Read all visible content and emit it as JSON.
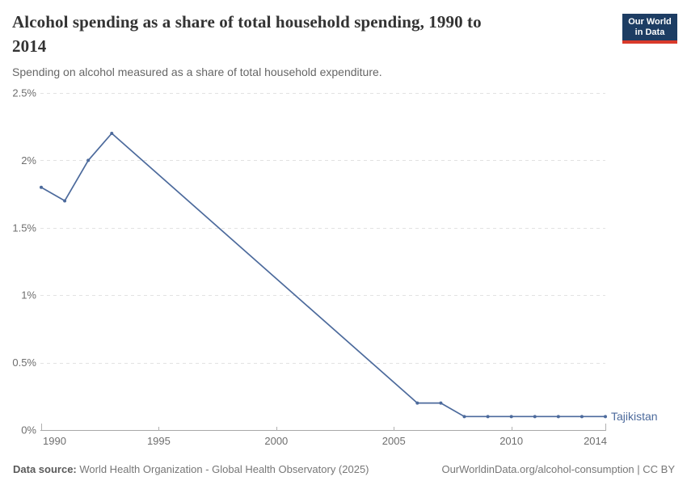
{
  "header": {
    "title_lines": [
      "Alcohol spending as a share of total household spending, 1990 to",
      "2014"
    ],
    "subtitle": "Spending on alcohol measured as a share of total household expenditure.",
    "logo": {
      "line1": "Our World",
      "line2": "in Data"
    }
  },
  "chart_data": {
    "type": "line",
    "title": "Alcohol spending as a share of total household spending, 1990 to 2014",
    "subtitle": "Spending on alcohol measured as a share of total household expenditure.",
    "xlabel": "",
    "ylabel": "",
    "xlim": [
      1990,
      2014
    ],
    "ylim": [
      0,
      2.5
    ],
    "x_ticks": [
      1990,
      1995,
      2000,
      2005,
      2010,
      2014
    ],
    "y_ticks": [
      0,
      0.5,
      1,
      1.5,
      2,
      2.5
    ],
    "y_tick_labels": [
      "0%",
      "0.5%",
      "1%",
      "1.5%",
      "2%",
      "2.5%"
    ],
    "grid": true,
    "legend_position": "end-of-line",
    "series": [
      {
        "name": "Tajikistan",
        "color": "#4c6a9c",
        "unit": "%",
        "points": [
          [
            1990,
            1.8
          ],
          [
            1991,
            1.7
          ],
          [
            1992,
            2.0
          ],
          [
            1993,
            2.2
          ],
          [
            2006,
            0.2
          ],
          [
            2007,
            0.2
          ],
          [
            2008,
            0.1
          ],
          [
            2009,
            0.1
          ],
          [
            2010,
            0.1
          ],
          [
            2011,
            0.1
          ],
          [
            2012,
            0.1
          ],
          [
            2013,
            0.1
          ],
          [
            2014,
            0.1
          ]
        ]
      }
    ]
  },
  "footer": {
    "source_label": "Data source:",
    "source_text": " World Health Organization - Global Health Observatory (2025)",
    "right_text": "OurWorldinData.org/alcohol-consumption | CC BY"
  },
  "colors": {
    "series_blue": "#4c6a9c",
    "logo_navy": "#1d3d63",
    "logo_red": "#d93a2b",
    "grid_line": "#e2e2e2",
    "axis_line": "#a8a8a8",
    "tick_mark": "#b0b0b0",
    "tick_label": "#6e6e6e",
    "title_text": "#333333",
    "subtitle_text": "#666666",
    "footer_text": "#777777"
  }
}
